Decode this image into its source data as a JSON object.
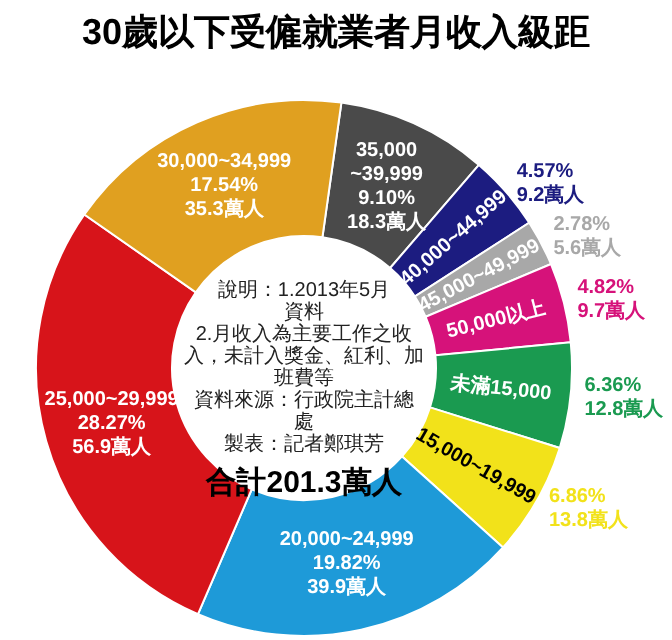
{
  "chart_data": {
    "type": "donut",
    "title": "30歲以下受僱就業者月收入級距",
    "categories": [
      "35,000\n~39,999",
      "40,000~44,999",
      "45,000~49,999",
      "50,000以上",
      "未滿15,000",
      "15,000~19,999",
      "20,000~24,999",
      "25,000~29,999",
      "30,000~34,999"
    ],
    "values": [
      9.1,
      4.57,
      2.78,
      4.82,
      6.36,
      6.86,
      19.82,
      28.27,
      17.54
    ],
    "value_labels": [
      "9.10%\n18.3萬人",
      "4.57%\n9.2萬人",
      "2.78%\n5.6萬人",
      "4.82%\n9.7萬人",
      "6.36%\n12.8萬人",
      "6.86%\n13.8萬人",
      "19.82%\n39.9萬人",
      "28.27%\n56.9萬人",
      "17.54%\n35.3萬人"
    ],
    "colors": [
      "#4a4a4a",
      "#1c1c80",
      "#a8a8a8",
      "#d6127a",
      "#1a9a50",
      "#f2e21a",
      "#1e9ad8",
      "#d7141a",
      "#e0a020"
    ],
    "annotations": [
      "說明：1.2013年5月資料",
      "2.月收入為主要工作之收入，未計入獎金、紅利、加班費等",
      "資料來源：行政院主計總處",
      "製表：記者鄭琪芳",
      "合計201.3萬人"
    ]
  }
}
